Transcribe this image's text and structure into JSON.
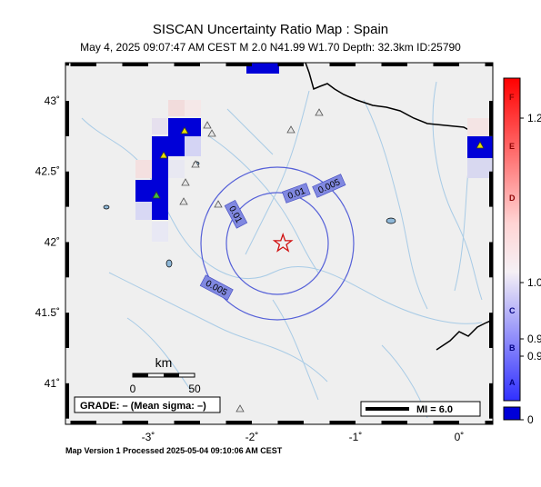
{
  "header": {
    "title": "SISCAN Uncertainty Ratio Map : Spain",
    "subtitle": "May  4, 2025 09:07:47 AM CEST   M 2.0   N41.99 W1.70   Depth: 32.3km   ID:25790"
  },
  "map": {
    "x_ticks": [
      {
        "lon": -3,
        "label": "-3˚"
      },
      {
        "lon": -2,
        "label": "-2˚"
      },
      {
        "lon": -1,
        "label": "-1˚"
      },
      {
        "lon": 0,
        "label": "0˚"
      }
    ],
    "y_ticks": [
      {
        "lat": 43,
        "label": "43˚"
      },
      {
        "lat": 42.5,
        "label": "42.5˚"
      },
      {
        "lat": 42,
        "label": "42˚"
      },
      {
        "lat": 41.5,
        "label": "41.5˚"
      },
      {
        "lat": 41,
        "label": "41˚"
      }
    ],
    "epicenter": {
      "lat": 41.99,
      "lon": -1.7
    },
    "contour_labels": [
      "0.01",
      "0.005",
      "0.01",
      "0.005"
    ],
    "scalebar": {
      "title": "km",
      "min_label": "0",
      "max_label": "50"
    },
    "grade_box": "GRADE: – (Mean sigma: –)",
    "mi_legend": "MI = 6.0",
    "colors": {
      "contour": "#5560d8",
      "high_blue": "#0000d8",
      "star": "#d01010",
      "river": "#9fc8e8"
    }
  },
  "colorbar": {
    "grades": [
      "F",
      "E",
      "D",
      "C",
      "B",
      "A"
    ],
    "values": [
      "1.2",
      "1.0",
      "0.9",
      "0.9",
      "0"
    ],
    "gradient_colors": [
      "#ff0000",
      "#ffffff",
      "#0000ff"
    ]
  },
  "footer": "Map Version 1 Processed 2025-05-04 09:10:06 AM CEST"
}
